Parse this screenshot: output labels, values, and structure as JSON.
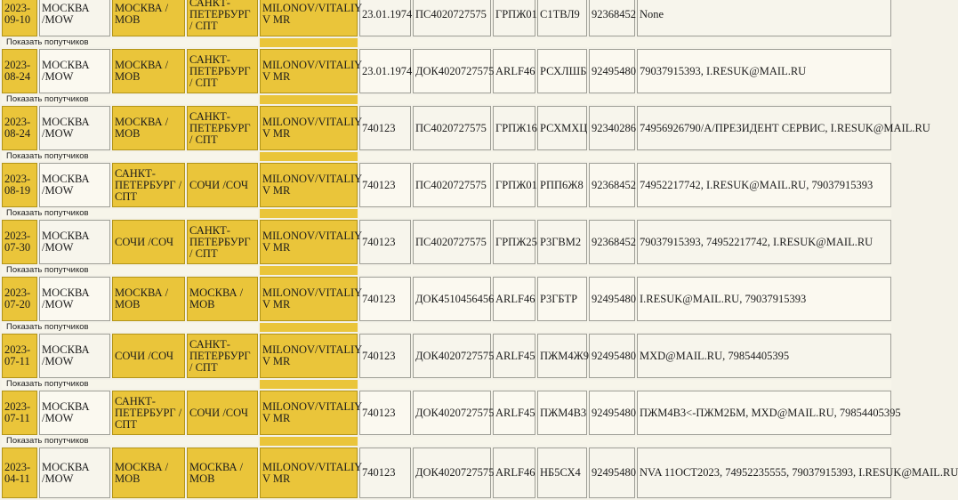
{
  "show_companions_label": "Показать попутчиков",
  "records": [
    {
      "date": "2023-09-10",
      "from_city": "МОСКВА /MOW",
      "dep_point": "МОСКВА /МОВ",
      "arr_point": "САНКТ-ПЕТЕРБУРГ / СПТ",
      "passenger": "MILONOV/VITALIY V MR",
      "birth_or_code": "23.01.1974",
      "document": "ПС4020727575",
      "carrier_flight": "ГРПЖ01",
      "pnr": "С1ТВЛ9",
      "agent": "92368452",
      "contacts": "None"
    },
    {
      "date": "2023-08-24",
      "from_city": "МОСКВА /MOW",
      "dep_point": "МОСКВА /МОВ",
      "arr_point": "САНКТ-ПЕТЕРБУРГ / СПТ",
      "passenger": "MILONOV/VITALIY V MR",
      "birth_or_code": "23.01.1974",
      "document": "ДОК4020727575",
      "carrier_flight": "ARLF46",
      "pnr": "РСХЛШБ",
      "agent": "92495480",
      "contacts": "79037915393, I.RESUK@MAIL.RU"
    },
    {
      "date": "2023-08-24",
      "from_city": "МОСКВА /MOW",
      "dep_point": "МОСКВА /МОВ",
      "arr_point": "САНКТ-ПЕТЕРБУРГ / СПТ",
      "passenger": "MILONOV/VITALIY V MR",
      "birth_or_code": "740123",
      "document": "ПС4020727575",
      "carrier_flight": "ГРПЖ16",
      "pnr": "РСХМХЦ",
      "agent": "92340286",
      "contacts": "74956926790/А/ПРЕЗИДЕНТ СЕРВИС, I.RESUK@MAIL.RU"
    },
    {
      "date": "2023-08-19",
      "from_city": "МОСКВА /MOW",
      "dep_point": "САНКТ-ПЕТЕРБУРГ / СПТ",
      "arr_point": "СОЧИ /СОЧ",
      "passenger": "MILONOV/VITALIY V MR",
      "birth_or_code": "740123",
      "document": "ПС4020727575",
      "carrier_flight": "ГРПЖ01",
      "pnr": "РПП6Ж8",
      "agent": "92368452",
      "contacts": "74952217742, I.RESUK@MAIL.RU, 79037915393"
    },
    {
      "date": "2023-07-30",
      "from_city": "МОСКВА /MOW",
      "dep_point": "СОЧИ /СОЧ",
      "arr_point": "САНКТ-ПЕТЕРБУРГ / СПТ",
      "passenger": "MILONOV/VITALIY V MR",
      "birth_or_code": "740123",
      "document": "ПС4020727575",
      "carrier_flight": "ГРПЖ25",
      "pnr": "Р3ГВМ2",
      "agent": "92368452",
      "contacts": "79037915393, 74952217742, I.RESUK@MAIL.RU"
    },
    {
      "date": "2023-07-20",
      "from_city": "МОСКВА /MOW",
      "dep_point": "МОСКВА /МОВ",
      "arr_point": "МОСКВА / МОВ",
      "passenger": "MILONOV/VITALIY V MR",
      "birth_or_code": "740123",
      "document": "ДОК4510456456",
      "carrier_flight": "ARLF46",
      "pnr": "Р3ГБТР",
      "agent": "92495480",
      "contacts": "I.RESUK@MAIL.RU, 79037915393"
    },
    {
      "date": "2023-07-11",
      "from_city": "МОСКВА /MOW",
      "dep_point": "СОЧИ /СОЧ",
      "arr_point": "САНКТ-ПЕТЕРБУРГ / СПТ",
      "passenger": "MILONOV/VITALIY V MR",
      "birth_or_code": "740123",
      "document": "ДОК4020727575",
      "carrier_flight": "ARLF45",
      "pnr": "ПЖМ4Ж9",
      "agent": "92495480",
      "contacts": "MXD@MAIL.RU, 79854405395"
    },
    {
      "date": "2023-07-11",
      "from_city": "МОСКВА /MOW",
      "dep_point": "САНКТ-ПЕТЕРБУРГ / СПТ",
      "arr_point": "СОЧИ /СОЧ",
      "passenger": "MILONOV/VITALIY V MR",
      "birth_or_code": "740123",
      "document": "ДОК4020727575",
      "carrier_flight": "ARLF45",
      "pnr": "ПЖМ4В3",
      "agent": "92495480",
      "contacts": "ПЖМ4В3<-ПЖМ2БМ, MXD@MAIL.RU, 79854405395"
    },
    {
      "date": "2023-04-11",
      "from_city": "МОСКВА /MOW",
      "dep_point": "МОСКВА /МОВ",
      "arr_point": "МОСКВА / МОВ",
      "passenger": "MILONOV/VITALIY V MR",
      "birth_or_code": "740123",
      "document": "ДОК4020727575",
      "carrier_flight": "ARLF46",
      "pnr": "НБ5СХ4",
      "agent": "92495480",
      "contacts": "NVA 11OCT2023, 74952235555, 79037915393, I.RESUK@MAIL.RU"
    }
  ],
  "colors": {
    "highlight": "#eac53a",
    "highlight_light": "#f1d970",
    "cell_bg": "#fbf9f0",
    "page_bg": "#f4f2e8"
  }
}
